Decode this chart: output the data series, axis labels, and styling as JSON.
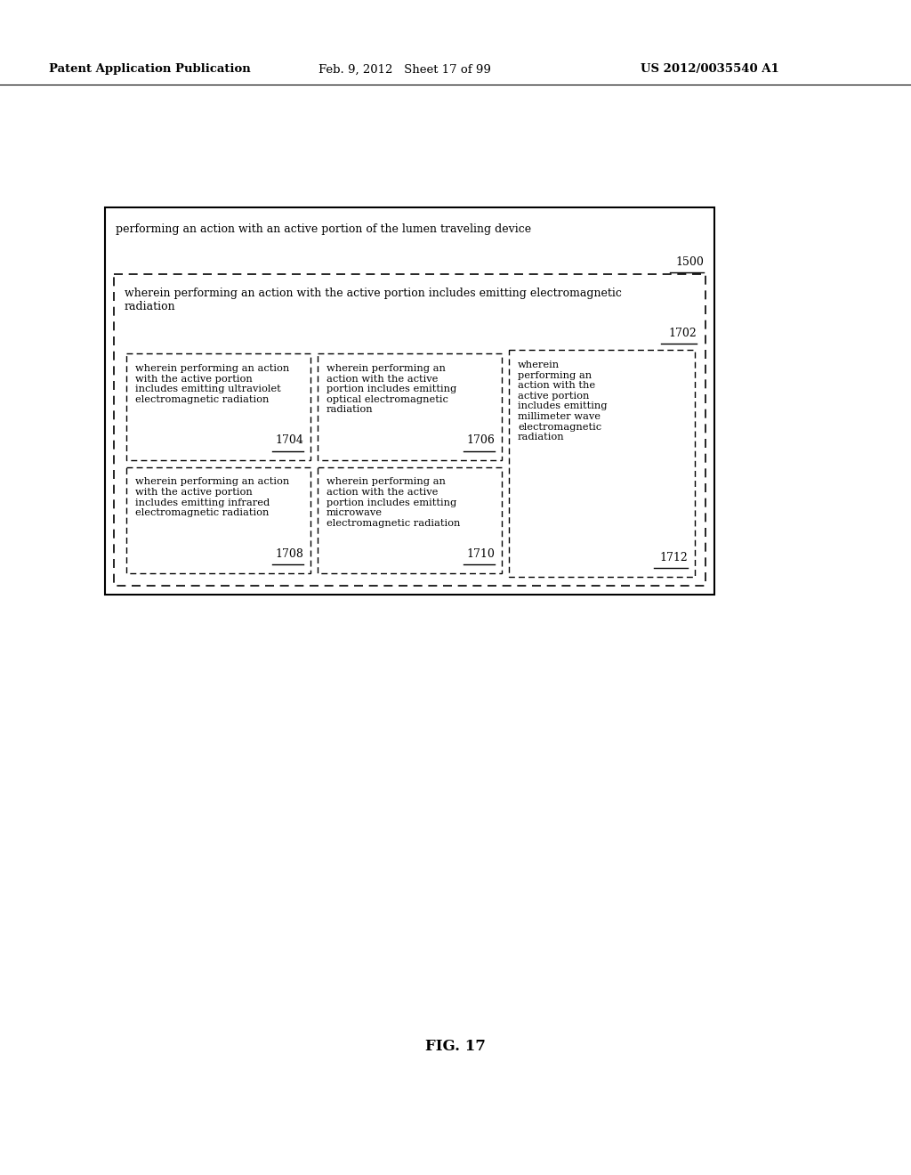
{
  "background_color": "#ffffff",
  "header_left": "Patent Application Publication",
  "header_mid": "Feb. 9, 2012   Sheet 17 of 99",
  "header_right": "US 2012/0035540 A1",
  "fig_label": "FIG. 17",
  "outer_box": {
    "text": "performing an action with an active portion of the lumen traveling device",
    "label": "1500"
  },
  "level1_box": {
    "text": "wherein performing an action with the active portion includes emitting electromagnetic\nradiation",
    "label": "1702"
  },
  "sub_boxes": [
    {
      "text": "wherein performing an action\nwith the active portion\nincludes emitting ultraviolet\nelectromagnetic radiation",
      "label": "1704",
      "row": 0,
      "col": 0
    },
    {
      "text": "wherein performing an\naction with the active\nportion includes emitting\noptical electromagnetic\nradiation",
      "label": "1706",
      "row": 0,
      "col": 1
    },
    {
      "text": "wherein\nperforming an\naction with the\nactive portion\nincludes emitting\nmillimeter wave\nelectromagnetic\nradiation",
      "label": "1712",
      "row": 0,
      "col": 2,
      "span_rows": 2
    },
    {
      "text": "wherein performing an action\nwith the active portion\nincludes emitting infrared\nelectromagnetic radiation",
      "label": "1708",
      "row": 1,
      "col": 0
    },
    {
      "text": "wherein performing an\naction with the active\nportion includes emitting\nmicrowave\nelectromagnetic radiation",
      "label": "1710",
      "row": 1,
      "col": 1
    }
  ]
}
